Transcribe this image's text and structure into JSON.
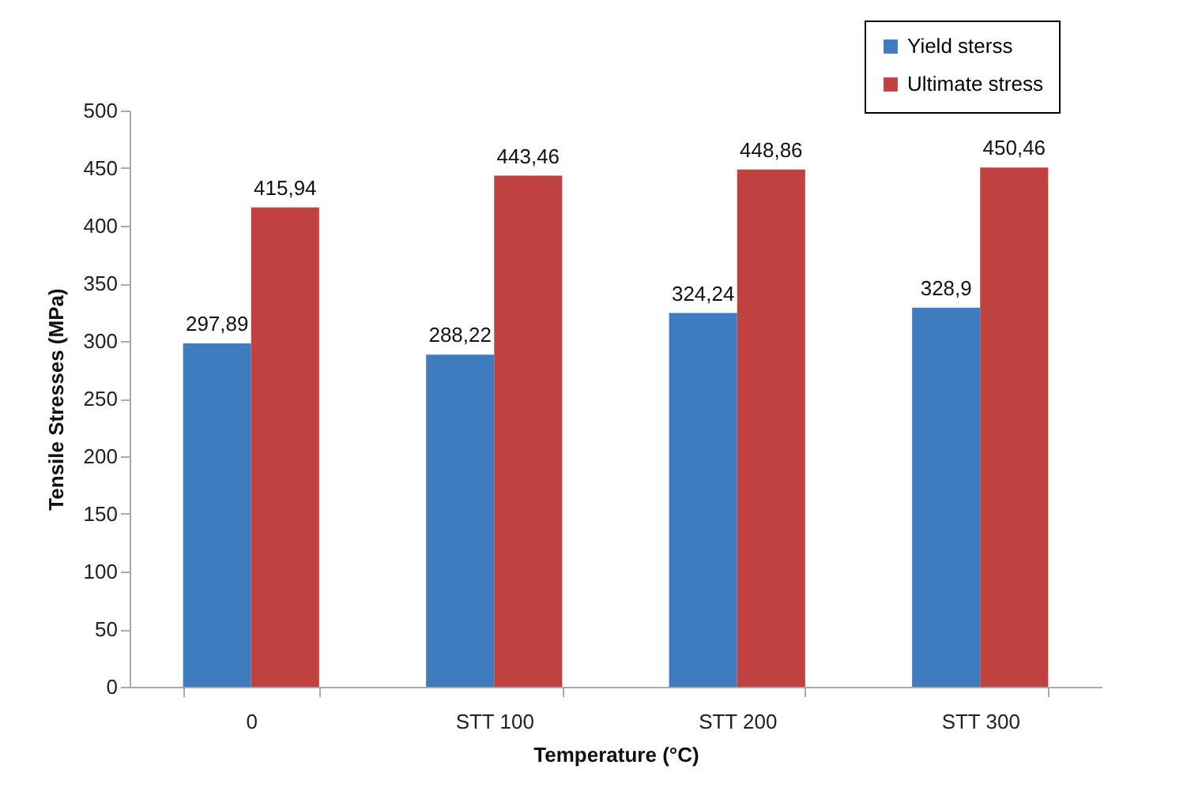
{
  "chart_data": {
    "type": "bar",
    "xlabel": "Temperature (°C)",
    "ylabel": "Tensile Stresses (MPa)",
    "categories": [
      "0",
      "STT 100",
      "STT 200",
      "STT 300"
    ],
    "series": [
      {
        "name": "Yield sterss",
        "color": "#3f7bbf",
        "values": [
          297.89,
          288.22,
          324.24,
          328.9
        ],
        "value_labels": [
          "297,89",
          "288,22",
          "324,24",
          "328,9"
        ]
      },
      {
        "name": "Ultimate stress",
        "color": "#c04240",
        "values": [
          415.94,
          443.46,
          448.86,
          450.46
        ],
        "value_labels": [
          "415,94",
          "443,46",
          "448,86",
          "450,46"
        ]
      }
    ],
    "ylim": [
      0,
      500
    ],
    "yticks": [
      0,
      50,
      100,
      150,
      200,
      250,
      300,
      350,
      400,
      450,
      500
    ],
    "grid": false,
    "legend": "top right"
  }
}
